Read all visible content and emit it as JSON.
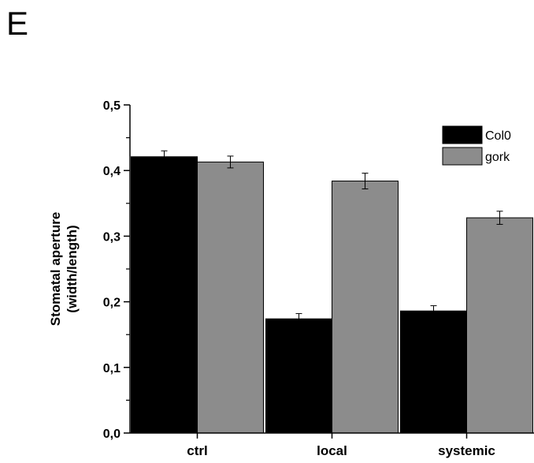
{
  "panel_label": "E",
  "chart_data": {
    "type": "bar",
    "categories": [
      "ctrl",
      "local",
      "systemic"
    ],
    "series": [
      {
        "name": "Col0",
        "values": [
          0.421,
          0.174,
          0.186
        ],
        "errors": [
          0.009,
          0.008,
          0.008
        ],
        "color": "#000000"
      },
      {
        "name": "gork",
        "values": [
          0.413,
          0.384,
          0.328
        ],
        "errors": [
          0.009,
          0.012,
          0.01
        ],
        "color": "#8c8c8c"
      }
    ],
    "ylabel_line1": "Stomatal aperture",
    "ylabel_line2": "(width/length)",
    "ylim": [
      0,
      0.5
    ],
    "yticks": [
      "0,0",
      "0,1",
      "0,2",
      "0,3",
      "0,4",
      "0,5"
    ],
    "legend_position": "top-right",
    "grid": false
  }
}
